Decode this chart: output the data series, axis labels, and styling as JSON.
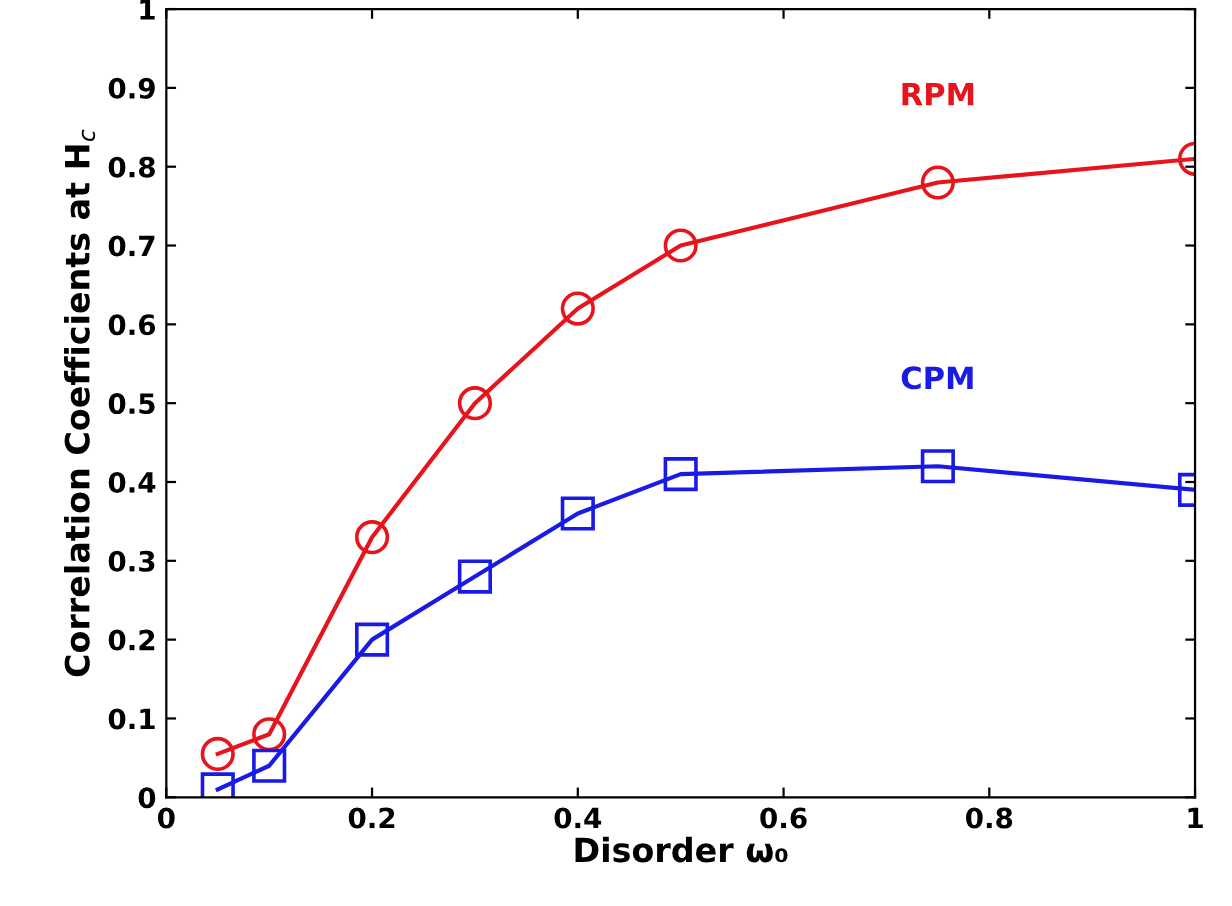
{
  "chart_data": {
    "type": "line",
    "xlabel": "Disorder ω₀",
    "ylabel": "Correlation Coefficients at H$_{c}$",
    "xlim": [
      0,
      1
    ],
    "xticks": [
      0,
      0.2,
      0.4,
      0.6,
      0.8,
      1
    ],
    "ylim": [
      0,
      1
    ],
    "yticks": [
      0,
      0.1,
      0.2,
      0.3,
      0.4,
      0.5,
      0.6,
      0.7,
      0.8,
      0.9,
      1
    ],
    "grid": false,
    "legend": false,
    "line_style": "solid",
    "series": [
      {
        "name": "RPM",
        "color": "#e8141c",
        "marker": "circle",
        "x": [
          0.05,
          0.1,
          0.2,
          0.3,
          0.4,
          0.5,
          0.75,
          1.0
        ],
        "values": [
          0.055,
          0.08,
          0.33,
          0.5,
          0.62,
          0.7,
          0.78,
          0.81
        ]
      },
      {
        "name": "CPM",
        "color": "#1a1ae6",
        "marker": "square",
        "x": [
          0.05,
          0.1,
          0.2,
          0.3,
          0.4,
          0.5,
          0.75,
          1.0
        ],
        "values": [
          0.01,
          0.04,
          0.2,
          0.28,
          0.36,
          0.41,
          0.42,
          0.39
        ]
      }
    ]
  }
}
